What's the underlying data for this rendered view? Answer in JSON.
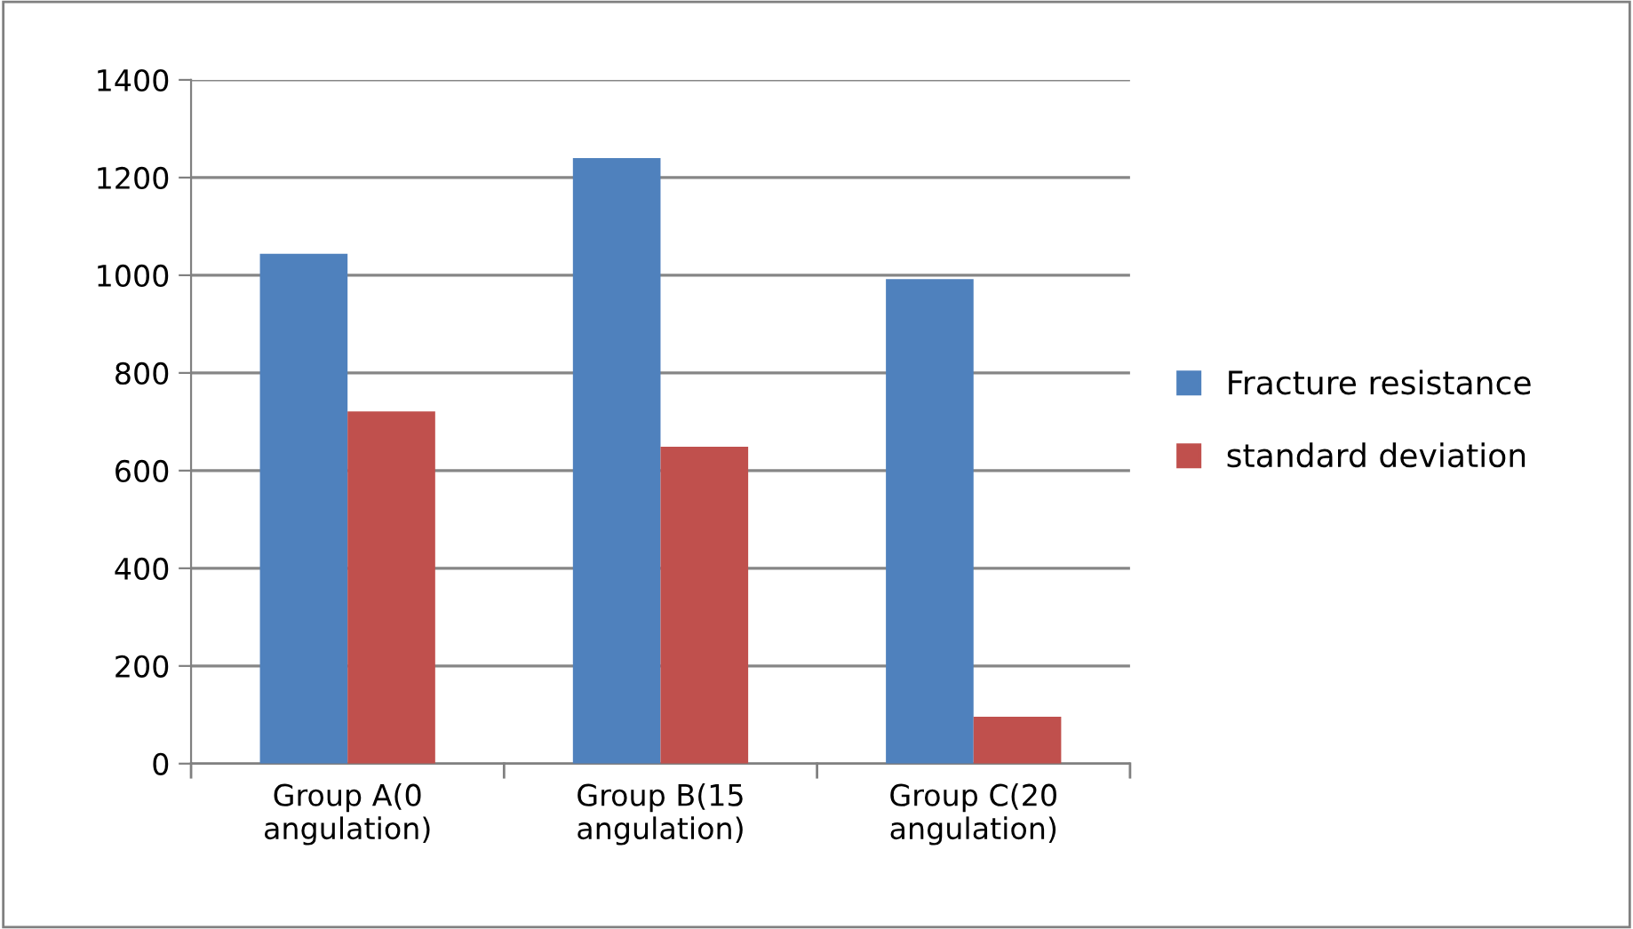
{
  "chart_data": {
    "type": "bar",
    "categories": [
      "Group A(0\nangulation)",
      "Group B(15\nangulation)",
      "Group C(20\nangulation)"
    ],
    "series": [
      {
        "name": "Fracture resistance",
        "color": "#4f81bd",
        "values": [
          1044,
          1240,
          992
        ]
      },
      {
        "name": "standard deviation",
        "color": "#c0504d",
        "values": [
          721,
          649,
          96
        ]
      }
    ],
    "ylim": [
      0,
      1400
    ],
    "yticks": [
      0,
      200,
      400,
      600,
      800,
      1000,
      1200,
      1400
    ],
    "grid": "y",
    "legend": "right"
  }
}
